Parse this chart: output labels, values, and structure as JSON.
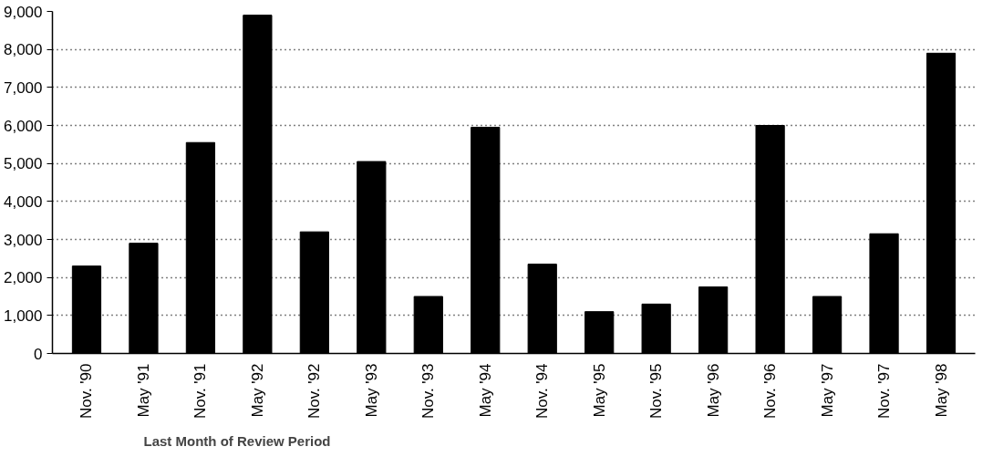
{
  "chart_data": {
    "type": "bar",
    "categories": [
      "Nov. '90",
      "May '91",
      "Nov. '91",
      "May '92",
      "Nov. '92",
      "May '93",
      "Nov. '93",
      "May '94",
      "Nov. '94",
      "May '95",
      "Nov. '95",
      "May '96",
      "Nov. '96",
      "May '97",
      "Nov. '97",
      "May '98"
    ],
    "values": [
      2300,
      2900,
      5550,
      8900,
      3200,
      5050,
      1500,
      5950,
      2350,
      1100,
      1300,
      1750,
      6000,
      1500,
      3150,
      7900
    ],
    "color": "#000000",
    "xlabel": "Last Month of Review Period",
    "ylim": [
      0,
      9000
    ],
    "yticks": [
      {
        "value": 0,
        "label": "0"
      },
      {
        "value": 1000,
        "label": "1,000"
      },
      {
        "value": 2000,
        "label": "2,000"
      },
      {
        "value": 3000,
        "label": "3,000"
      },
      {
        "value": 4000,
        "label": "4,000"
      },
      {
        "value": 5000,
        "label": "5,000"
      },
      {
        "value": 6000,
        "label": "6,000"
      },
      {
        "value": 7000,
        "label": "7,000"
      },
      {
        "value": 8000,
        "label": "8,000"
      },
      {
        "value": 9000,
        "label": "9,000"
      }
    ],
    "grid": "y"
  }
}
